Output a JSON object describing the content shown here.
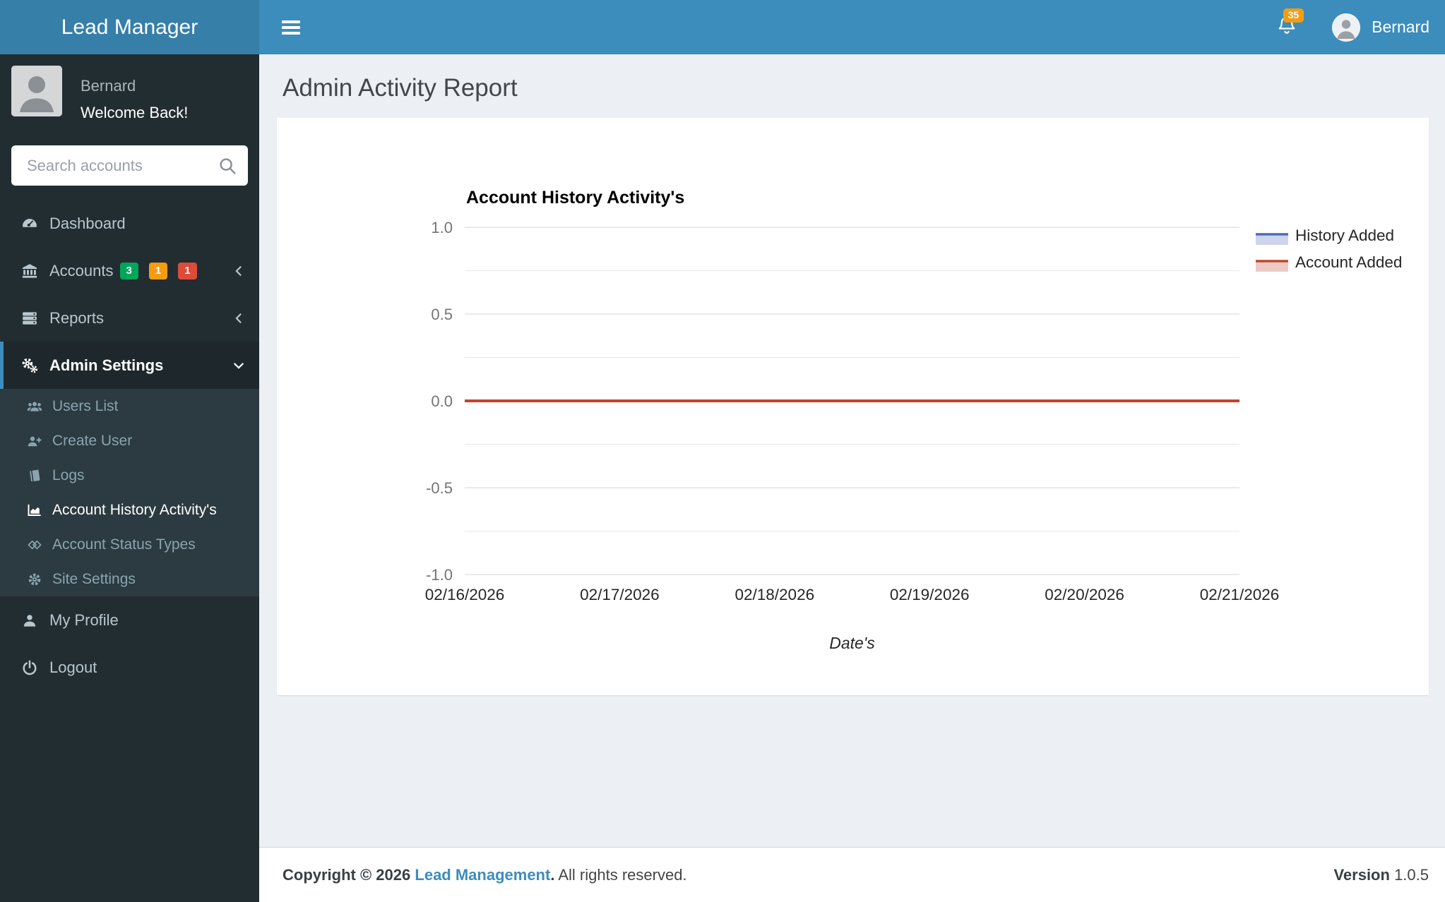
{
  "app": {
    "name": "Lead Manager"
  },
  "navbar": {
    "notification_count": "35",
    "user_name": "Bernard"
  },
  "sidebar": {
    "user": {
      "name": "Bernard",
      "status": "Welcome Back!"
    },
    "search_placeholder": "Search accounts",
    "menu": [
      {
        "id": "dashboard",
        "icon": "gauge-icon",
        "label": "Dashboard"
      },
      {
        "id": "accounts",
        "icon": "bank-icon",
        "label": "Accounts",
        "chevron": "left",
        "badges": [
          {
            "text": "3",
            "color": "#00a65a"
          },
          {
            "text": "1",
            "color": "#f39c12"
          },
          {
            "text": "1",
            "color": "#dd4b39"
          }
        ]
      },
      {
        "id": "reports",
        "icon": "server-icon",
        "label": "Reports",
        "chevron": "left"
      },
      {
        "id": "admin-settings",
        "icon": "gears-icon",
        "label": "Admin Settings",
        "chevron": "down",
        "active": true,
        "children": [
          {
            "id": "users-list",
            "icon": "users-icon",
            "label": "Users List"
          },
          {
            "id": "create-user",
            "icon": "user-plus-icon",
            "label": "Create User"
          },
          {
            "id": "logs",
            "icon": "book-icon",
            "label": "Logs"
          },
          {
            "id": "account-history-activitys",
            "icon": "area-chart-icon",
            "label": "Account History Activity's",
            "active": true
          },
          {
            "id": "account-status-types",
            "icon": "diamonds-icon",
            "label": "Account Status Types"
          },
          {
            "id": "site-settings",
            "icon": "gear-icon",
            "label": "Site Settings"
          }
        ]
      },
      {
        "id": "my-profile",
        "icon": "user-icon",
        "label": "My Profile"
      },
      {
        "id": "logout",
        "icon": "power-icon",
        "label": "Logout"
      }
    ]
  },
  "content": {
    "page_title": "Admin Activity Report"
  },
  "chart_data": {
    "type": "line",
    "title": "Account History Activity's",
    "xlabel": "Date's",
    "ylabel": "",
    "categories": [
      "02/16/2026",
      "02/17/2026",
      "02/18/2026",
      "02/19/2026",
      "02/20/2026",
      "02/21/2026"
    ],
    "series": [
      {
        "name": "History Added",
        "color": "#4a69bd",
        "fill": "rgba(74,105,189,0.28)",
        "values": [
          0,
          0,
          0,
          0,
          0,
          0
        ]
      },
      {
        "name": "Account Added",
        "color": "#c0442e",
        "fill": "rgba(192,68,46,0.28)",
        "values": [
          0,
          0,
          0,
          0,
          0,
          0
        ]
      }
    ],
    "ylim": [
      -1.0,
      1.0
    ],
    "yticks": [
      1.0,
      0.5,
      0.0,
      -0.5,
      -1.0
    ],
    "minor_gridlines": [
      0.75,
      0.25,
      -0.25,
      -0.75
    ],
    "grid": true,
    "legend_position": "right"
  },
  "footer": {
    "copyright_prefix": "Copyright © 2026",
    "brand": "Lead Management",
    "bold_period": ".",
    "rights_text": "All rights reserved.",
    "version_label": "Version",
    "version_value": "1.0.5"
  },
  "colors": {
    "accent": "#3c8dbc",
    "logo_bg": "#367fa9",
    "sidebar_bg": "#222d32",
    "submenu_bg": "#2c3b41",
    "badge_green": "#00a65a",
    "badge_orange": "#f39c12",
    "badge_red": "#dd4b39"
  }
}
